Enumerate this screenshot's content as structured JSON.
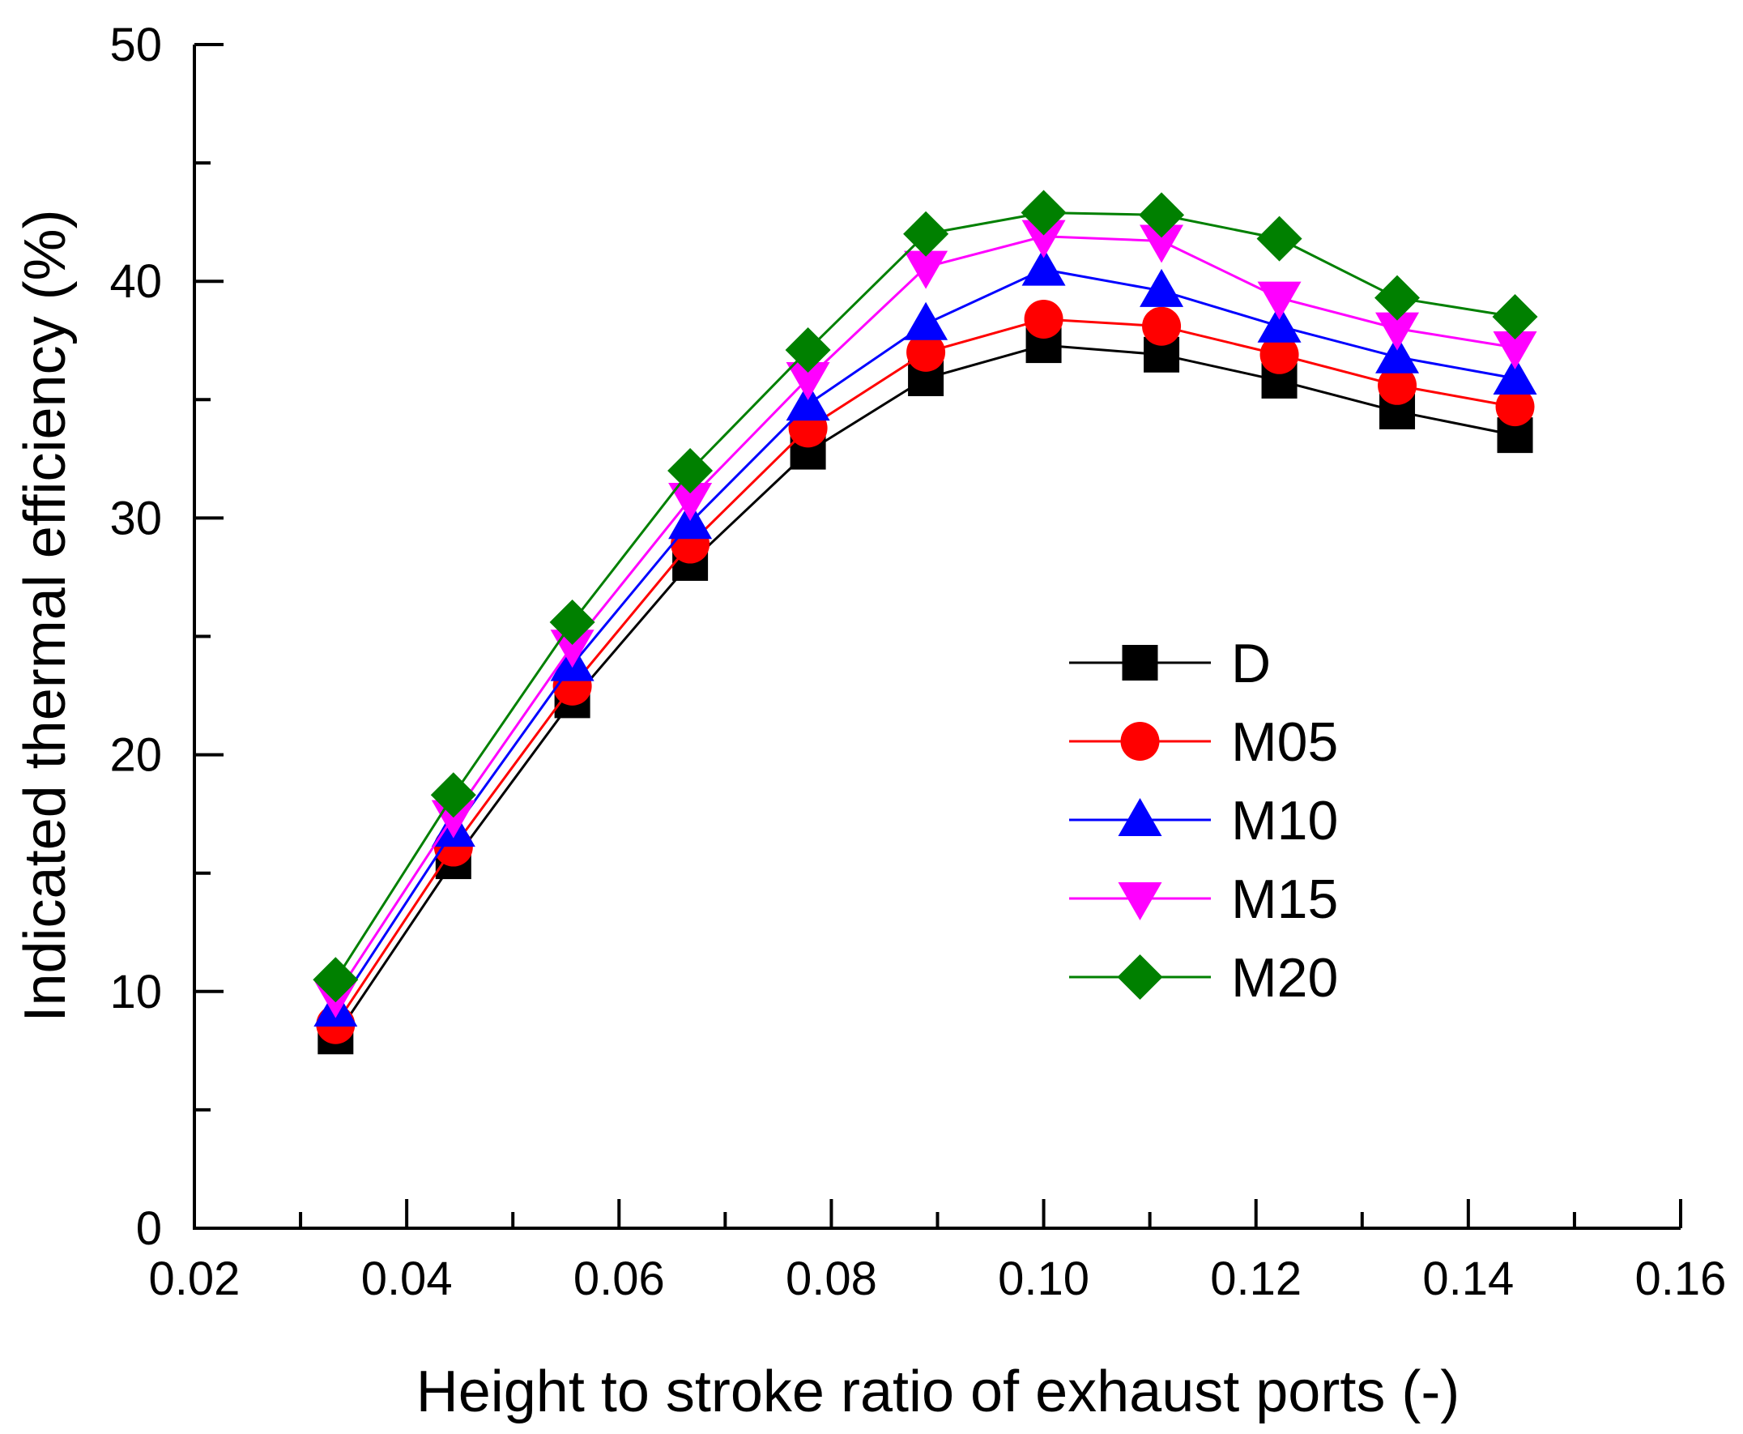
{
  "chart_data": {
    "type": "line",
    "xlabel": "Height to stroke ratio of exhaust ports (-)",
    "ylabel": "Indicated thermal efficiency (%)",
    "xlim": [
      0.02,
      0.16
    ],
    "ylim": [
      0,
      50
    ],
    "x_ticks": [
      "0.02",
      "0.04",
      "0.06",
      "0.08",
      "0.10",
      "0.12",
      "0.14",
      "0.16"
    ],
    "y_ticks": [
      "0",
      "10",
      "20",
      "30",
      "40",
      "50"
    ],
    "grid": false,
    "legend_position": "center-right",
    "x": [
      0.0333,
      0.0444,
      0.0556,
      0.0667,
      0.0778,
      0.0889,
      0.1,
      0.1111,
      0.1222,
      0.1333,
      0.1444
    ],
    "series": [
      {
        "name": "D",
        "color": "#000000",
        "marker": "square",
        "values": [
          8.1,
          15.5,
          22.3,
          28.1,
          32.8,
          35.9,
          37.3,
          36.9,
          35.8,
          34.5,
          33.5
        ]
      },
      {
        "name": "M05",
        "color": "#ff0000",
        "marker": "circle",
        "values": [
          8.6,
          16.1,
          22.9,
          28.9,
          33.8,
          37.0,
          38.4,
          38.1,
          36.9,
          35.6,
          34.7
        ]
      },
      {
        "name": "M10",
        "color": "#0000ff",
        "marker": "triangle-up",
        "values": [
          9.2,
          16.8,
          23.8,
          29.8,
          34.8,
          38.2,
          40.5,
          39.6,
          38.1,
          36.8,
          35.9
        ]
      },
      {
        "name": "M15",
        "color": "#ff00ff",
        "marker": "triangle-down",
        "values": [
          9.8,
          17.4,
          24.6,
          30.8,
          35.9,
          40.6,
          41.9,
          41.7,
          39.3,
          38.0,
          37.2
        ]
      },
      {
        "name": "M20",
        "color": "#008000",
        "marker": "diamond",
        "values": [
          10.5,
          18.3,
          25.6,
          32.0,
          37.1,
          42.0,
          42.9,
          42.8,
          41.8,
          39.3,
          38.5
        ]
      }
    ]
  }
}
